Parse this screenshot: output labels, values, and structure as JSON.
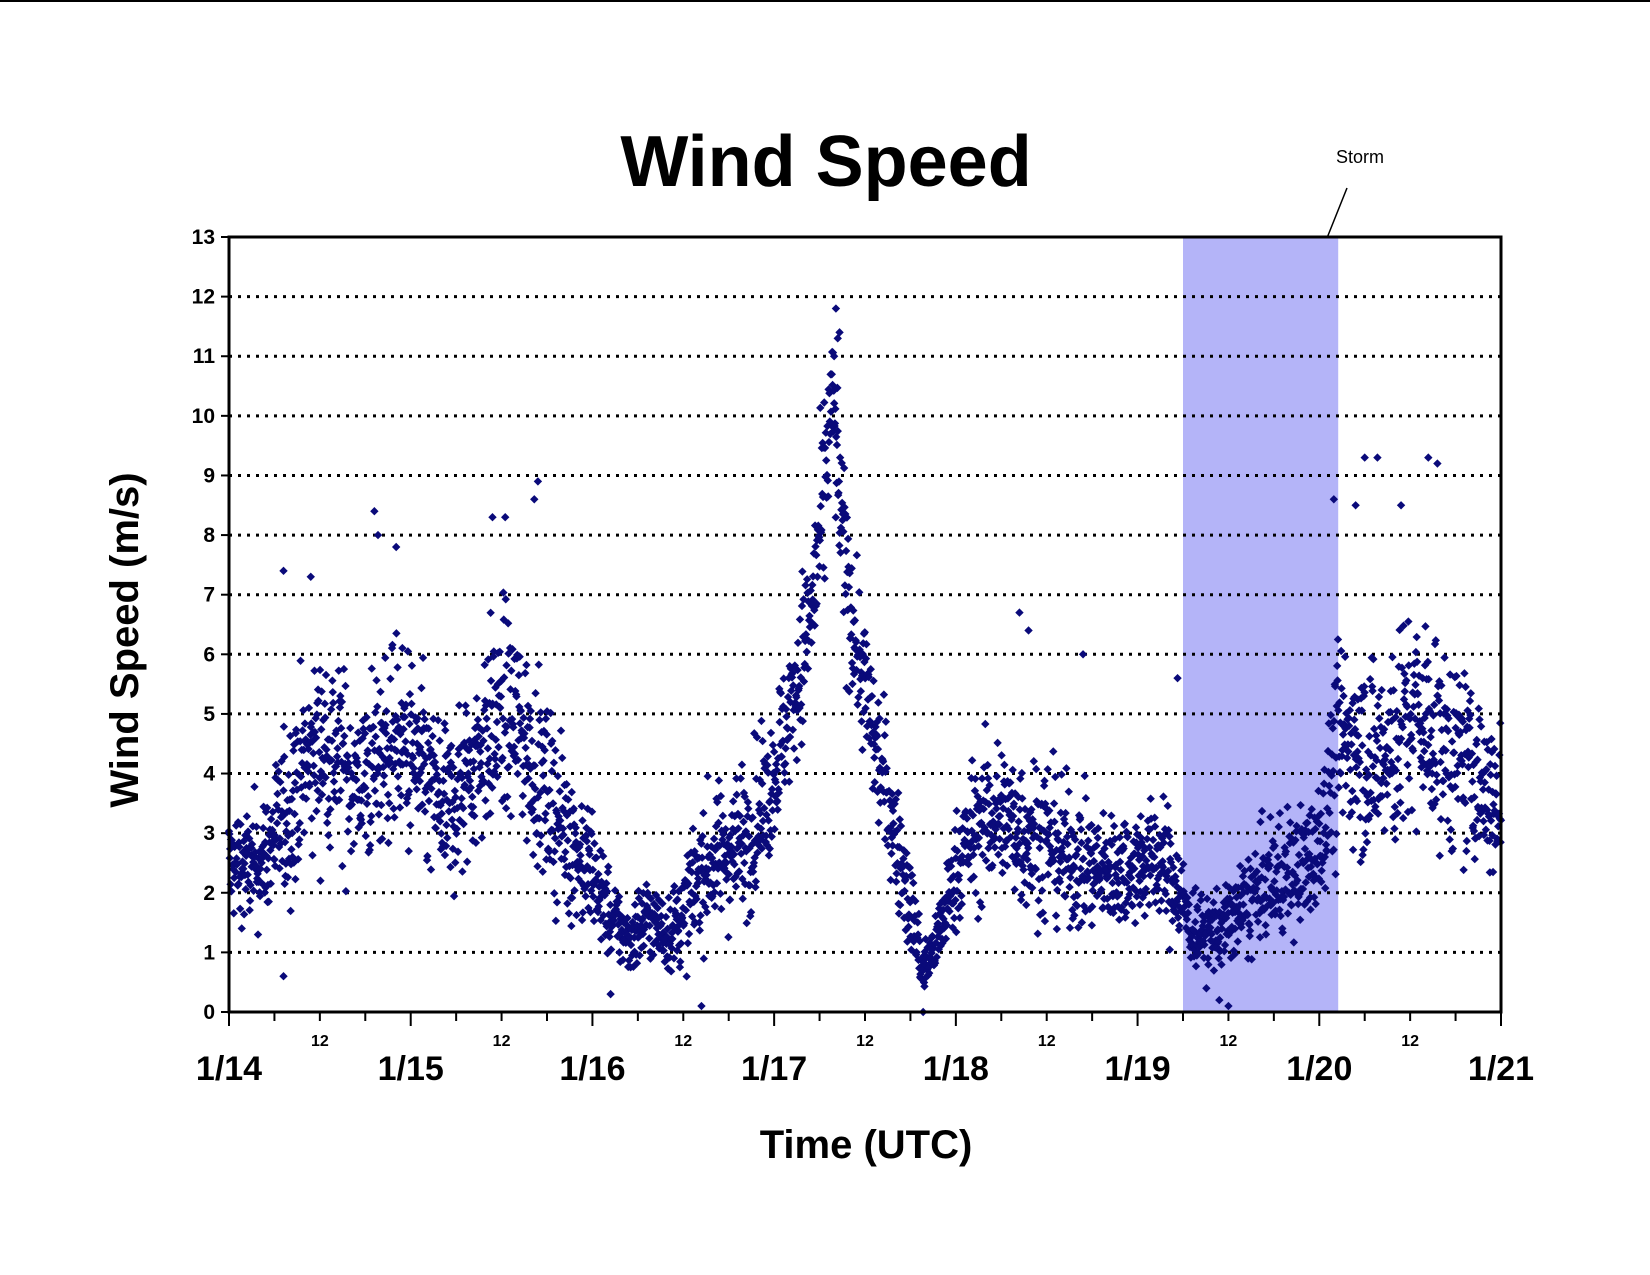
{
  "chart_data": {
    "type": "scatter",
    "title": "Wind Speed",
    "xlabel": "Time (UTC)",
    "ylabel": "Wind Speed (m/s)",
    "ylim": [
      0,
      13
    ],
    "yticks": [
      "0",
      "1",
      "2",
      "3",
      "4",
      "5",
      "6",
      "7",
      "8",
      "9",
      "10",
      "11",
      "12",
      "13"
    ],
    "xlim": [
      "1/14 00:00",
      "1/21 00:00"
    ],
    "x_major_ticks": [
      "1/14",
      "1/15",
      "1/16",
      "1/17",
      "1/18",
      "1/19",
      "1/20",
      "1/21"
    ],
    "x_minor_tick_label": "12",
    "grid": "horizontal dotted",
    "marker": "diamond",
    "marker_color": "#0A0A7A",
    "shaded_region": {
      "label": "Storm",
      "x_start": "1/19 06:00",
      "x_end": "1/20 02:30",
      "color": "#B4B4F8"
    },
    "series": [
      {
        "envelope_note": "values sampled from the plotted cloud; each entry is [day offset from 1/14 00:00, center m/s, spread m/s]",
        "x_unit_start": "1/14 00:00",
        "points": [
          [
            0.0,
            2.5,
            0.8
          ],
          [
            0.1,
            2.4,
            0.8
          ],
          [
            0.2,
            2.6,
            0.9
          ],
          [
            0.3,
            3.2,
            1.2
          ],
          [
            0.4,
            4.0,
            1.3
          ],
          [
            0.5,
            4.5,
            1.4
          ],
          [
            0.6,
            4.3,
            1.4
          ],
          [
            0.7,
            3.8,
            1.2
          ],
          [
            0.8,
            4.1,
            1.3
          ],
          [
            0.9,
            4.6,
            1.4
          ],
          [
            1.0,
            4.3,
            1.4
          ],
          [
            1.1,
            3.8,
            1.3
          ],
          [
            1.2,
            3.3,
            1.2
          ],
          [
            1.3,
            3.9,
            1.3
          ],
          [
            1.4,
            4.5,
            1.4
          ],
          [
            1.5,
            5.0,
            1.5
          ],
          [
            1.6,
            4.8,
            1.4
          ],
          [
            1.7,
            4.0,
            1.3
          ],
          [
            1.8,
            3.3,
            1.2
          ],
          [
            1.9,
            2.8,
            1.1
          ],
          [
            2.0,
            2.3,
            0.9
          ],
          [
            2.1,
            1.6,
            0.6
          ],
          [
            2.2,
            1.2,
            0.5
          ],
          [
            2.3,
            1.6,
            0.6
          ],
          [
            2.4,
            1.3,
            0.5
          ],
          [
            2.5,
            1.6,
            0.7
          ],
          [
            2.6,
            2.4,
            0.9
          ],
          [
            2.7,
            2.6,
            1.0
          ],
          [
            2.8,
            2.8,
            1.0
          ],
          [
            2.9,
            3.2,
            1.1
          ],
          [
            3.0,
            4.0,
            1.0
          ],
          [
            3.1,
            5.2,
            1.1
          ],
          [
            3.2,
            6.6,
            1.2
          ],
          [
            3.27,
            8.4,
            1.3
          ],
          [
            3.32,
            10.4,
            1.0
          ],
          [
            3.37,
            8.0,
            1.3
          ],
          [
            3.45,
            6.2,
            1.1
          ],
          [
            3.55,
            4.6,
            1.0
          ],
          [
            3.65,
            3.2,
            0.9
          ],
          [
            3.75,
            1.8,
            0.7
          ],
          [
            3.82,
            0.7,
            0.4
          ],
          [
            3.9,
            1.2,
            0.5
          ],
          [
            4.0,
            2.4,
            0.8
          ],
          [
            4.1,
            3.0,
            1.0
          ],
          [
            4.2,
            3.3,
            1.1
          ],
          [
            4.3,
            3.2,
            1.1
          ],
          [
            4.4,
            3.0,
            1.1
          ],
          [
            4.5,
            2.9,
            1.1
          ],
          [
            4.6,
            2.6,
            1.0
          ],
          [
            4.7,
            2.5,
            0.9
          ],
          [
            4.8,
            2.3,
            0.8
          ],
          [
            4.9,
            2.4,
            0.8
          ],
          [
            5.0,
            2.5,
            0.8
          ],
          [
            5.1,
            2.6,
            0.9
          ],
          [
            5.2,
            2.2,
            0.8
          ],
          [
            5.3,
            1.4,
            0.6
          ],
          [
            5.4,
            1.3,
            0.6
          ],
          [
            5.5,
            1.5,
            0.6
          ],
          [
            5.6,
            1.8,
            0.7
          ],
          [
            5.7,
            2.1,
            0.8
          ],
          [
            5.8,
            2.3,
            0.9
          ],
          [
            5.9,
            2.4,
            0.9
          ],
          [
            6.0,
            2.8,
            1.0
          ],
          [
            6.1,
            4.4,
            1.4
          ],
          [
            6.2,
            4.6,
            1.5
          ],
          [
            6.3,
            4.2,
            1.4
          ],
          [
            6.4,
            4.4,
            1.5
          ],
          [
            6.5,
            5.0,
            1.5
          ],
          [
            6.6,
            4.8,
            1.4
          ],
          [
            6.7,
            4.4,
            1.4
          ],
          [
            6.8,
            4.2,
            1.3
          ],
          [
            6.9,
            3.8,
            1.2
          ],
          [
            7.0,
            3.4,
            1.2
          ]
        ],
        "outliers": [
          [
            3.34,
            11.8
          ],
          [
            3.35,
            11.3
          ],
          [
            3.36,
            11.4
          ],
          [
            3.33,
            11.0
          ],
          [
            0.3,
            7.4
          ],
          [
            0.45,
            7.3
          ],
          [
            0.8,
            8.4
          ],
          [
            0.82,
            8.0
          ],
          [
            0.92,
            7.8
          ],
          [
            1.45,
            8.3
          ],
          [
            1.52,
            8.3
          ],
          [
            1.7,
            8.9
          ],
          [
            1.68,
            8.6
          ],
          [
            6.25,
            9.3
          ],
          [
            6.32,
            9.3
          ],
          [
            6.2,
            8.5
          ],
          [
            6.08,
            8.6
          ],
          [
            6.6,
            9.3
          ],
          [
            6.65,
            9.2
          ],
          [
            6.45,
            8.5
          ],
          [
            4.35,
            6.7
          ],
          [
            4.4,
            6.4
          ],
          [
            4.7,
            6.0
          ],
          [
            5.22,
            5.6
          ],
          [
            0.3,
            0.6
          ],
          [
            2.1,
            0.3
          ],
          [
            2.6,
            0.1
          ],
          [
            3.82,
            0.0
          ],
          [
            5.45,
            0.2
          ],
          [
            5.5,
            0.1
          ]
        ]
      }
    ]
  }
}
